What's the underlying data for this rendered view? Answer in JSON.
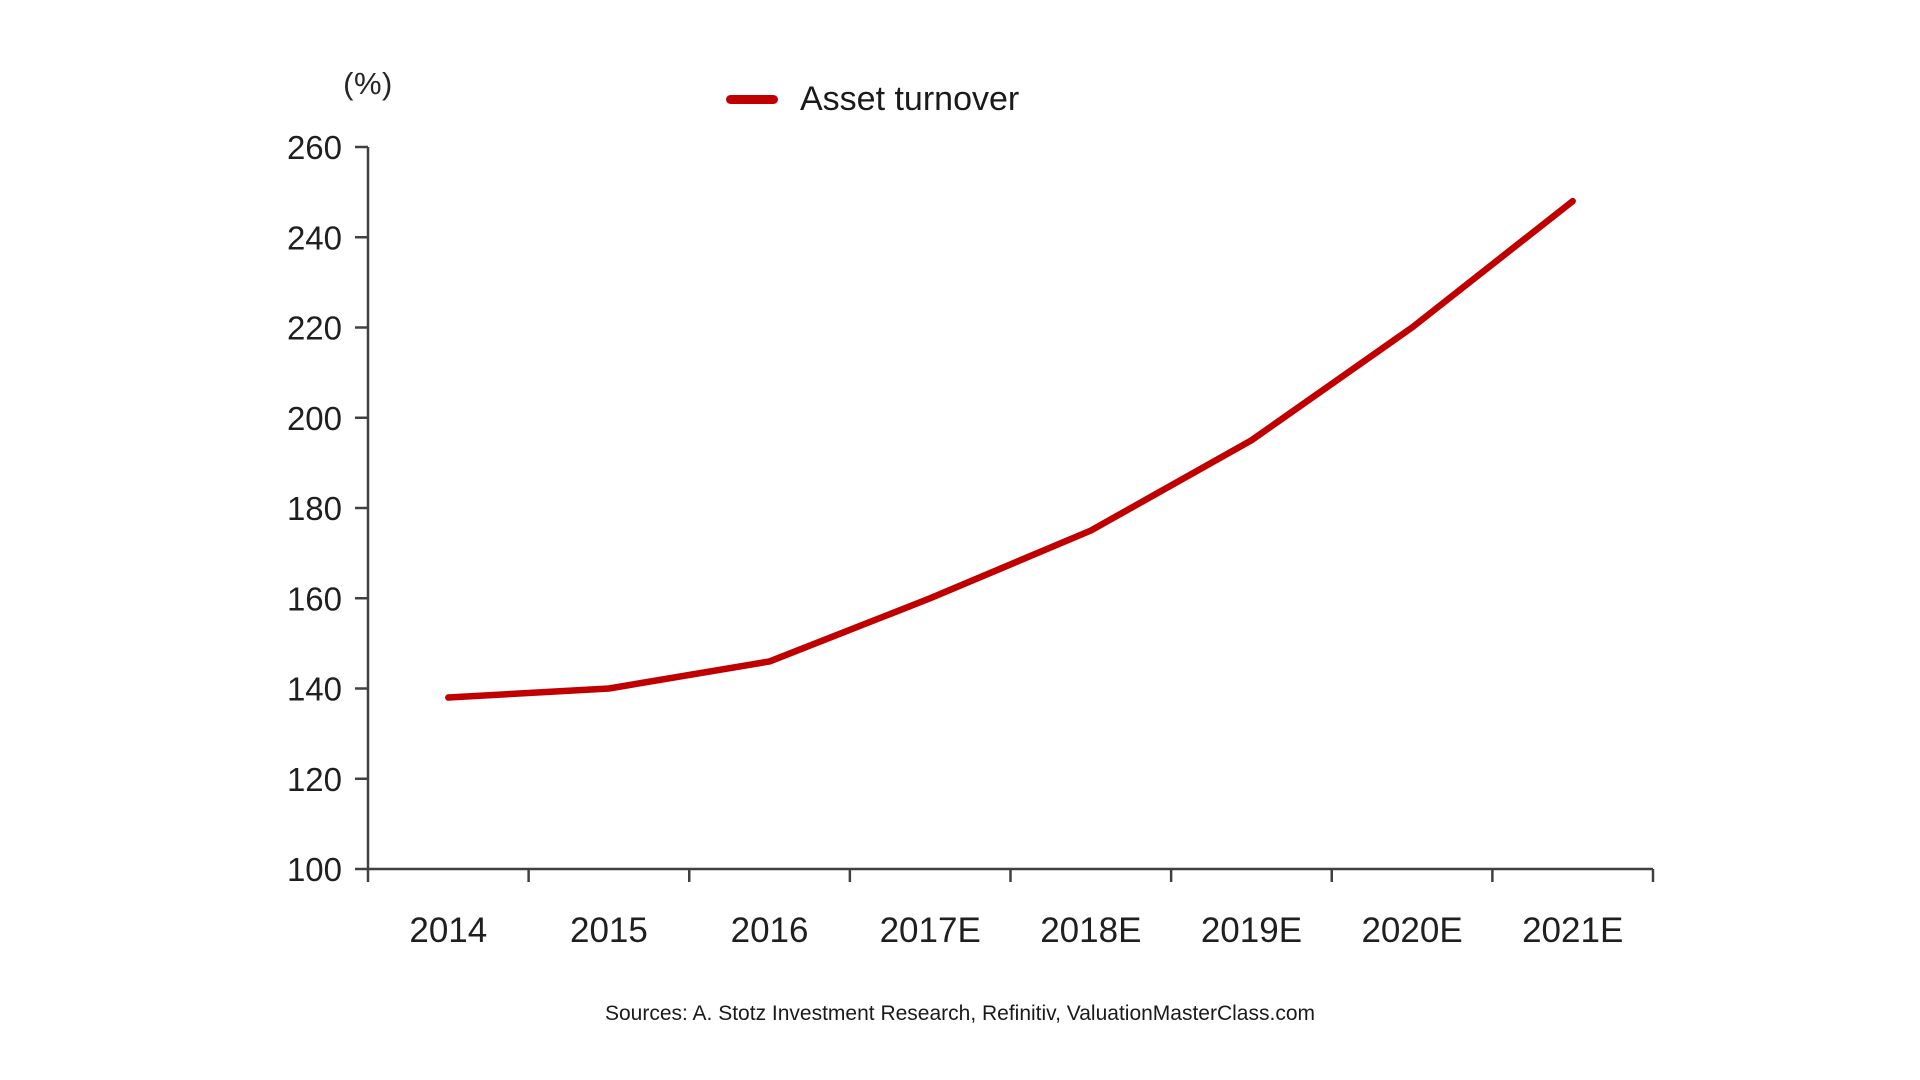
{
  "chart_data": {
    "type": "line",
    "unit_label": "(%)",
    "categories": [
      "2014",
      "2015",
      "2016",
      "2017E",
      "2018E",
      "2019E",
      "2020E",
      "2021E"
    ],
    "series": [
      {
        "name": "Asset turnover",
        "color": "#c00000",
        "values": [
          138,
          140,
          146,
          160,
          175,
          195,
          220,
          248
        ]
      }
    ],
    "ylim": [
      100,
      260
    ],
    "y_ticks": [
      100,
      120,
      140,
      160,
      180,
      200,
      220,
      240,
      260
    ],
    "grid": false,
    "legend_position": "top-center",
    "axis_color": "#404040"
  },
  "footer": {
    "sources": "Sources: A. Stotz Investment Research, Refinitiv, ValuationMasterClass.com"
  }
}
